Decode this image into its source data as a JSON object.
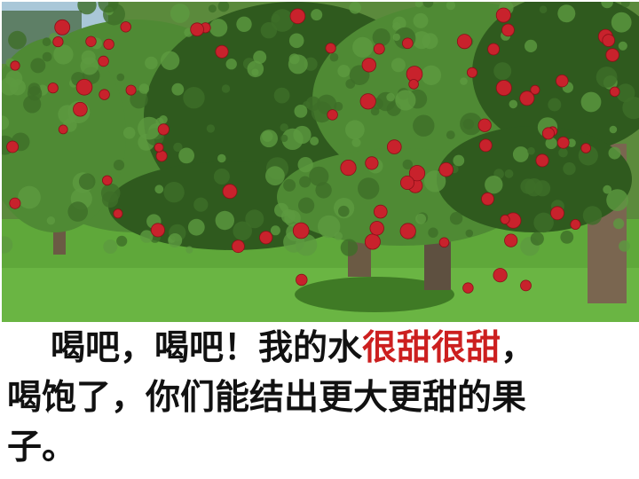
{
  "photo": {
    "subject": "apple-orchard",
    "colors": {
      "sky": "#a9c7d8",
      "grass": "#5fa83a",
      "foliage_dark": "#2f5a1e",
      "foliage_light": "#4f8a34",
      "trunk": "#6b5a44",
      "apple": "#c8222c"
    }
  },
  "caption": {
    "line1_part1": "喝吧，喝吧！我的水",
    "line1_highlight": "很甜很甜",
    "line1_part2": "，",
    "line2": "喝饱了，你们能结出更大更甜的果",
    "line3": "子。",
    "highlight_color": "#cc1f1f",
    "text_color": "#111111"
  }
}
